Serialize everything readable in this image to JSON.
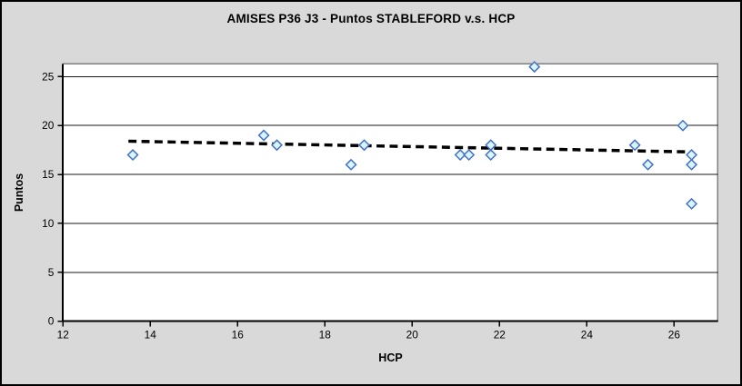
{
  "chart_data": {
    "type": "scatter",
    "title": "AMISES P36 J3 - Puntos STABLEFORD v.s. HCP",
    "xlabel": "HCP",
    "ylabel": "Puntos",
    "xlim": [
      12,
      27
    ],
    "ylim": [
      0,
      26.3
    ],
    "xticks": [
      12,
      14,
      16,
      18,
      20,
      22,
      24,
      26
    ],
    "yticks": [
      0,
      5,
      10,
      15,
      20,
      25
    ],
    "grid": "horizontal-only",
    "legend": "none",
    "marker_shape": "diamond",
    "points": [
      [
        13.6,
        17
      ],
      [
        16.6,
        19
      ],
      [
        16.9,
        18
      ],
      [
        18.6,
        16
      ],
      [
        18.9,
        18
      ],
      [
        21.1,
        17
      ],
      [
        21.3,
        17
      ],
      [
        21.8,
        17
      ],
      [
        21.8,
        18
      ],
      [
        22.8,
        26
      ],
      [
        25.1,
        18
      ],
      [
        25.4,
        16
      ],
      [
        26.2,
        20
      ],
      [
        26.4,
        12
      ],
      [
        26.4,
        16
      ],
      [
        26.4,
        17
      ]
    ],
    "trendline": {
      "style": "dashed",
      "x1": 13.5,
      "y1": 18.4,
      "x2": 26.4,
      "y2": 17.3
    },
    "colors": {
      "background": "#d9d9d9",
      "plot_background": "#ffffff",
      "gridline": "#1a1a1a",
      "axis": "#000000",
      "plot_border": "#808080",
      "marker_fill": "#d8f4fc",
      "marker_stroke": "#4470c4",
      "trendline": "#000000",
      "text": "#000000"
    }
  }
}
